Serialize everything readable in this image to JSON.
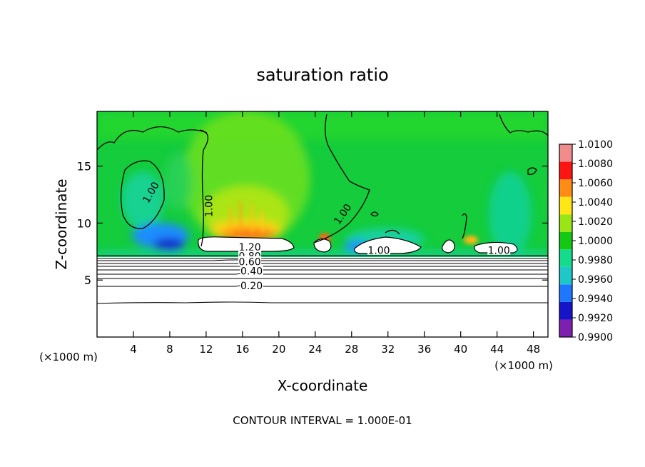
{
  "chart_data": {
    "type": "heatmap",
    "title": "saturation ratio",
    "xlabel": "X-coordinate",
    "ylabel": "Z-coordinate",
    "x_unit_left": "(×1000 m)",
    "x_unit_right": "(×1000 m)",
    "xlim": [
      0,
      49.6
    ],
    "ylim": [
      0,
      19.8
    ],
    "x_ticks": [
      4,
      8,
      12,
      16,
      20,
      24,
      28,
      32,
      36,
      40,
      44,
      48
    ],
    "y_ticks": [
      5,
      10,
      15
    ],
    "colorbar": {
      "levels": [
        "0.9900",
        "0.9920",
        "0.9940",
        "0.9960",
        "0.9980",
        "1.0000",
        "1.0020",
        "1.0040",
        "1.0060",
        "1.0080",
        "1.0100"
      ],
      "colors": [
        "#7f1fb0",
        "#1414c8",
        "#1e78ff",
        "#1ec8c8",
        "#14dc8c",
        "#14c814",
        "#9ae614",
        "#ffe614",
        "#ff8c14",
        "#ff1414",
        "#f08c8c"
      ]
    },
    "contour_labels": [
      {
        "text": "1.00",
        "x": 5.9,
        "z": 12.7,
        "rotate": -60
      },
      {
        "text": "1.00",
        "x": 12.3,
        "z": 11.5,
        "rotate": -90
      },
      {
        "text": "1.00",
        "x": 27.0,
        "z": 10.8,
        "rotate": -55
      },
      {
        "text": "1.00",
        "x": 31.0,
        "z": 7.6,
        "rotate": 0
      },
      {
        "text": "1.00",
        "x": 44.2,
        "z": 7.6,
        "rotate": 0
      },
      {
        "text": "1.20",
        "x": 16.8,
        "z": 7.9,
        "rotate": 0
      },
      {
        "text": "0.80",
        "x": 16.8,
        "z": 7.1,
        "rotate": 0
      },
      {
        "text": "0.60",
        "x": 16.8,
        "z": 6.6,
        "rotate": 0
      },
      {
        "text": "0.40",
        "x": 17.0,
        "z": 5.8,
        "rotate": 0
      },
      {
        "text": "0.20",
        "x": 17.0,
        "z": 4.5,
        "rotate": 0
      }
    ],
    "footer": "CONTOUR INTERVAL = 1.000E-01"
  }
}
